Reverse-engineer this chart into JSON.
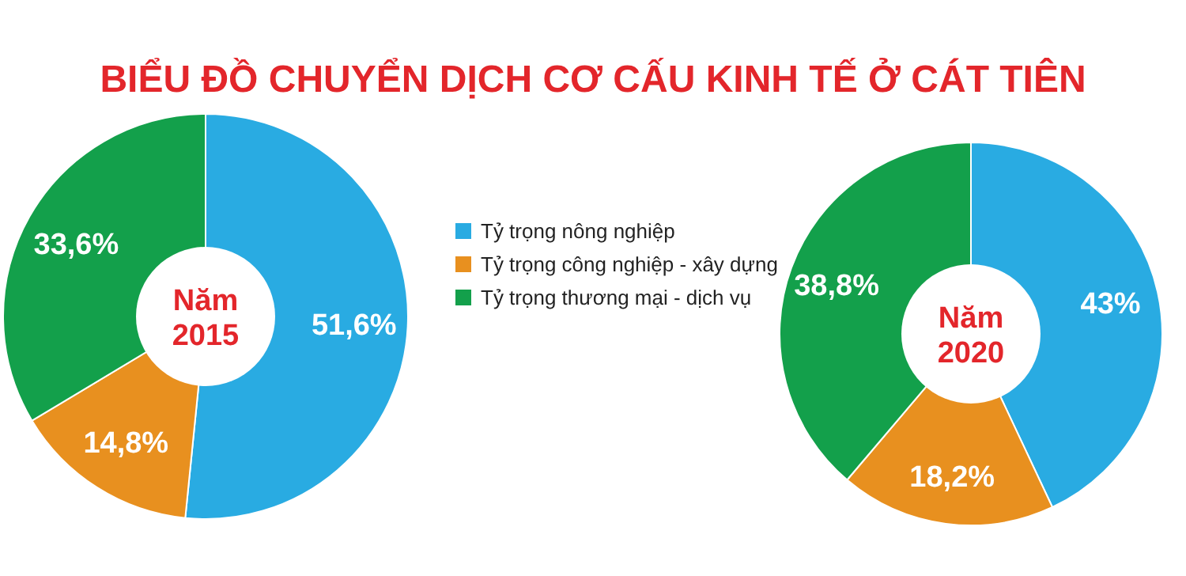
{
  "chart_data": [
    {
      "type": "donut",
      "title": "BIỂU ĐỒ CHUYỂN DỊCH CƠ CẤU KINH TẾ Ở CÁT TIÊN",
      "categories": [
        "Tỷ trọng nông nghiệp",
        "Tỷ trọng công nghiệp - xây dựng",
        "Tỷ trọng thương mại - dịch vụ"
      ],
      "values": [
        51.6,
        14.8,
        33.6
      ],
      "colors": [
        "#29abe2",
        "#e8901f",
        "#13a04b"
      ],
      "value_labels": [
        "51,6%",
        "14,8%",
        "33,6%"
      ],
      "annotations": [
        "Năm 2015"
      ],
      "legend": "right"
    },
    {
      "type": "donut",
      "categories": [
        null,
        null,
        null
      ],
      "values": [
        43,
        18.2,
        38.8
      ],
      "colors": [
        "#29abe2",
        "#e8901f",
        "#13a04b"
      ],
      "value_labels": [
        "43%",
        "18,2%",
        "38,8%"
      ],
      "annotations": [
        "Năm 2020"
      ]
    }
  ]
}
